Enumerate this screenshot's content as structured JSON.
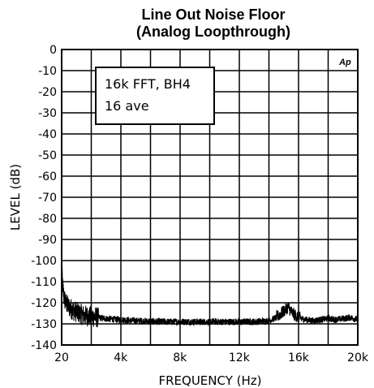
{
  "chart_data": {
    "type": "line",
    "title": "Line Out Noise Floor",
    "subtitle": "(Analog Loopthrough)",
    "xlabel": "FREQUENCY (Hz)",
    "ylabel": "LEVEL (dB)",
    "xlim": [
      20,
      20000
    ],
    "ylim": [
      -140,
      0
    ],
    "x_ticks": [
      {
        "value": 20,
        "label": "20"
      },
      {
        "value": 4000,
        "label": "4k"
      },
      {
        "value": 8000,
        "label": "8k"
      },
      {
        "value": 12000,
        "label": "12k"
      },
      {
        "value": 16000,
        "label": "16k"
      },
      {
        "value": 20000,
        "label": "20k"
      }
    ],
    "y_ticks": [
      0,
      -10,
      -20,
      -30,
      -40,
      -50,
      -60,
      -70,
      -80,
      -90,
      -100,
      -110,
      -120,
      -130,
      -140
    ],
    "grid": true,
    "annotation": [
      "16k FFT, BH4",
      "16 ave"
    ],
    "logo": "Ap",
    "series": [
      {
        "x": [
          20,
          50,
          100,
          150,
          200,
          300,
          400,
          500,
          700,
          900,
          1200,
          1500,
          2000,
          2500,
          3000,
          3500,
          4000,
          5000,
          6000,
          7000,
          8000,
          9000,
          10000,
          11000,
          12000,
          13000,
          14000,
          14500,
          15000,
          15300,
          15600,
          16000,
          16500,
          17000,
          17500,
          18000,
          18500,
          19000,
          19500,
          20000
        ],
        "y": [
          -102,
          -108,
          -113,
          -116,
          -118,
          -120,
          -121,
          -122,
          -123,
          -124,
          -125,
          -126,
          -126.5,
          -127,
          -127.5,
          -127.8,
          -128,
          -128.5,
          -128.8,
          -129,
          -129,
          -129,
          -129,
          -129,
          -129,
          -129,
          -128.5,
          -127,
          -124,
          -122,
          -125,
          -127,
          -128,
          -128.5,
          -128,
          -127.5,
          -128,
          -127.5,
          -127,
          -128
        ]
      }
    ]
  }
}
